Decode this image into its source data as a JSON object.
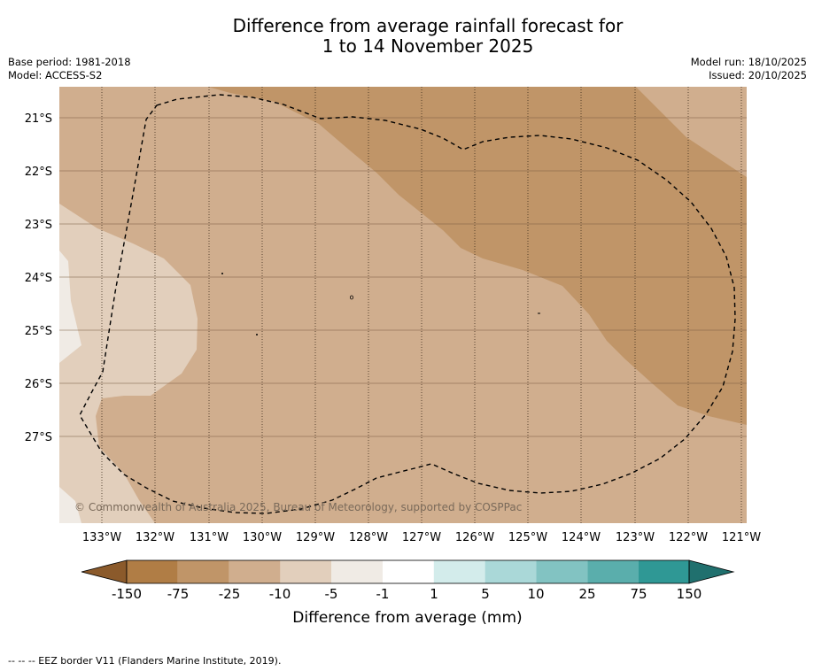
{
  "title": {
    "line1": "Difference from average rainfall forecast for",
    "line2": "1 to 14 November 2025"
  },
  "meta_left": {
    "base_period": "Base period: 1981-2018",
    "model": "Model: ACCESS-S2"
  },
  "meta_right": {
    "model_run": "Model run: 18/10/2025",
    "issued": "Issued: 20/10/2025"
  },
  "map": {
    "lat_labels": [
      "21°S",
      "22°S",
      "23°S",
      "24°S",
      "25°S",
      "26°S",
      "27°S"
    ],
    "lon_labels": [
      "133°W",
      "132°W",
      "131°W",
      "130°W",
      "129°W",
      "128°W",
      "127°W",
      "126°W",
      "125°W",
      "124°W",
      "123°W",
      "122°W",
      "121°W"
    ],
    "copyright": "© Commonwealth of Australia 2025, Bureau of Meteorology, supported by COSPPac",
    "fill_colors": {
      "minus150_75": "#b07d45",
      "minus75_25": "#c09568",
      "minus25_10": "#d0ae8e",
      "minus10_5": "#e2cfbc",
      "minus5_1": "#f0ebe5",
      "minus1_1": "#ffffff"
    }
  },
  "colorbar": {
    "ticks": [
      "-150",
      "-75",
      "-25",
      "-10",
      "-5",
      "-1",
      "1",
      "5",
      "10",
      "25",
      "75",
      "150"
    ],
    "colors": [
      "#8b5a2b",
      "#b07d45",
      "#c09568",
      "#d0ae8e",
      "#e2cfbc",
      "#f0ebe5",
      "#ffffff",
      "#d3eceb",
      "#aad8d8",
      "#82c3c2",
      "#5aaeac",
      "#2f9895",
      "#20706e"
    ],
    "label": "Difference from average (mm)"
  },
  "footnote": "--  --  -- EEZ border V11 (Flanders Marine Institute, 2019)."
}
